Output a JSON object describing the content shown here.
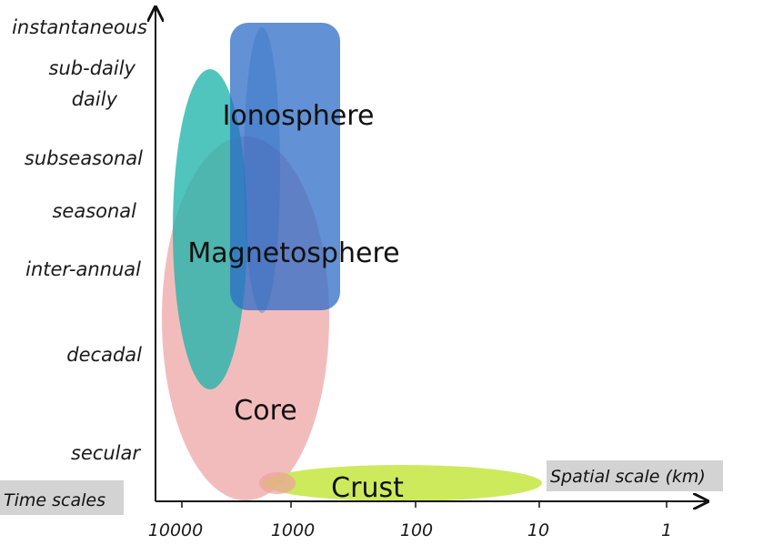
{
  "time_scales": {
    "title": "Time scales",
    "levels": [
      "instantaneous",
      "sub-daily",
      "daily",
      "subseasonal",
      "seasonal",
      "inter-annual",
      "decadal",
      "secular"
    ]
  },
  "spatial_scale": {
    "title": "Spatial scale (km)",
    "ticks": [
      "10000",
      "1000",
      "100",
      "10",
      "1"
    ]
  },
  "regions": {
    "ionosphere": "Ionosphere",
    "magnetosphere": "Magnetosphere",
    "core": "Core",
    "crust": "Crust"
  },
  "colors": {
    "ionosphere": "#2e6cc7",
    "magnetosphere": "#1fb5aa",
    "core": "#eea0a0",
    "crust": "#c8e84a",
    "label_box": "#d3d3d3"
  }
}
